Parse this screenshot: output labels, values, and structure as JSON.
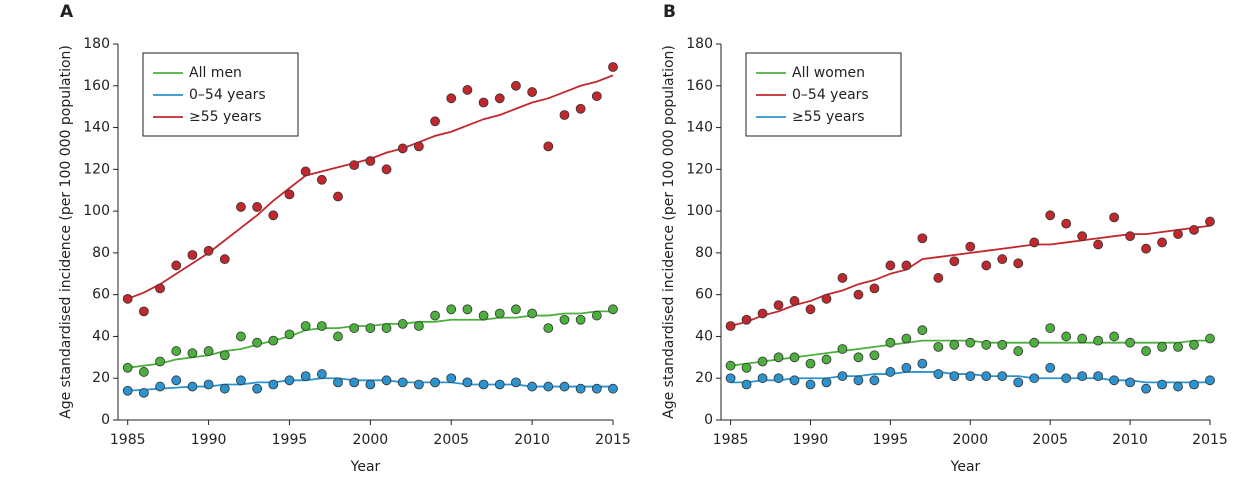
{
  "chart_data": [
    {
      "type": "scatter",
      "panel": "A",
      "x_label": "Year",
      "y_label": "Age standardised incidence (per 100 000 population)",
      "x": [
        1985,
        1986,
        1987,
        1988,
        1989,
        1990,
        1991,
        1992,
        1993,
        1994,
        1995,
        1996,
        1997,
        1998,
        1999,
        2000,
        2001,
        2002,
        2003,
        2004,
        2005,
        2006,
        2007,
        2008,
        2009,
        2010,
        2011,
        2012,
        2013,
        2014,
        2015
      ],
      "xlim": [
        1984.4,
        2015
      ],
      "xticks": [
        1985,
        1990,
        1995,
        2000,
        2005,
        2010,
        2015
      ],
      "ylim": [
        0,
        180
      ],
      "yticks": [
        0,
        20,
        40,
        60,
        80,
        100,
        120,
        140,
        160,
        180
      ],
      "series": [
        {
          "name": "All men",
          "color": "#4caf3e",
          "values": [
            25,
            23,
            28,
            33,
            32,
            33,
            31,
            40,
            37,
            38,
            41,
            45,
            45,
            40,
            44,
            44,
            44,
            46,
            45,
            50,
            53,
            53,
            50,
            51,
            53,
            51,
            44,
            48,
            48,
            50,
            53
          ],
          "fit": [
            25,
            26,
            27,
            29,
            30,
            31,
            33,
            34,
            36,
            38,
            40,
            43,
            44,
            44,
            45,
            45,
            46,
            46,
            47,
            47,
            48,
            48,
            48,
            49,
            49,
            50,
            50,
            51,
            51,
            52,
            52
          ]
        },
        {
          "name": "0–54 years",
          "color": "#2b93cf",
          "values": [
            14,
            13,
            16,
            19,
            16,
            17,
            15,
            19,
            15,
            17,
            19,
            21,
            22,
            18,
            18,
            17,
            19,
            18,
            17,
            18,
            20,
            18,
            17,
            17,
            18,
            16,
            16,
            16,
            15,
            15,
            15
          ],
          "fit": [
            14,
            14.5,
            15,
            15.5,
            16,
            16,
            17,
            17,
            18,
            18,
            19,
            19,
            20,
            20,
            19,
            19,
            19,
            18,
            18,
            18,
            18,
            17,
            17,
            17,
            17,
            16,
            16,
            16,
            16,
            16,
            16
          ]
        },
        {
          "name": "≥55 years",
          "color": "#c1272d",
          "values": [
            58,
            52,
            63,
            74,
            79,
            81,
            77,
            102,
            102,
            98,
            108,
            119,
            115,
            107,
            122,
            124,
            120,
            130,
            131,
            143,
            154,
            158,
            152,
            154,
            160,
            157,
            131,
            146,
            149,
            155,
            169
          ],
          "fit": [
            58,
            61,
            65,
            70,
            75,
            80,
            86,
            92,
            98,
            105,
            111,
            117,
            119,
            121,
            123,
            125,
            128,
            130,
            133,
            136,
            138,
            141,
            144,
            146,
            149,
            152,
            154,
            157,
            160,
            162,
            165
          ]
        }
      ]
    },
    {
      "type": "scatter",
      "panel": "B",
      "x_label": "Year",
      "y_label": "Age standardised incidence (per 100 000 population)",
      "x": [
        1985,
        1986,
        1987,
        1988,
        1989,
        1990,
        1991,
        1992,
        1993,
        1994,
        1995,
        1996,
        1997,
        1998,
        1999,
        2000,
        2001,
        2002,
        2003,
        2004,
        2005,
        2006,
        2007,
        2008,
        2009,
        2010,
        2011,
        2012,
        2013,
        2014,
        2015
      ],
      "xlim": [
        1984.4,
        2015
      ],
      "xticks": [
        1985,
        1990,
        1995,
        2000,
        2005,
        2010,
        2015
      ],
      "ylim": [
        0,
        180
      ],
      "yticks": [
        0,
        20,
        40,
        60,
        80,
        100,
        120,
        140,
        160,
        180
      ],
      "series": [
        {
          "name": "All women",
          "color": "#4caf3e",
          "values": [
            26,
            25,
            28,
            30,
            30,
            27,
            29,
            34,
            30,
            31,
            37,
            39,
            43,
            35,
            36,
            37,
            36,
            36,
            33,
            37,
            44,
            40,
            39,
            38,
            40,
            37,
            33,
            35,
            35,
            36,
            39
          ],
          "fit": [
            26,
            27,
            28,
            29,
            30,
            31,
            32,
            33,
            34,
            35,
            36,
            37,
            38,
            38,
            38,
            38,
            37,
            37,
            37,
            37,
            37,
            37,
            37,
            37,
            37,
            37,
            37,
            37,
            37,
            38,
            38
          ]
        },
        {
          "name": "0–54 years",
          "color": "#c1272d",
          "values": [
            45,
            48,
            51,
            55,
            57,
            53,
            58,
            68,
            60,
            63,
            74,
            74,
            87,
            68,
            76,
            83,
            74,
            77,
            75,
            85,
            98,
            94,
            88,
            84,
            97,
            88,
            82,
            85,
            89,
            91,
            95
          ],
          "fit": [
            45,
            47,
            50,
            52,
            55,
            57,
            60,
            62,
            65,
            67,
            70,
            72,
            77,
            78,
            79,
            80,
            81,
            82,
            83,
            84,
            84,
            85,
            86,
            87,
            88,
            89,
            89,
            90,
            91,
            92,
            93
          ]
        },
        {
          "name": "≥55 years",
          "color": "#2b93cf",
          "values": [
            20,
            17,
            20,
            20,
            19,
            17,
            18,
            21,
            19,
            19,
            23,
            25,
            27,
            22,
            21,
            21,
            21,
            21,
            18,
            20,
            25,
            20,
            21,
            21,
            19,
            18,
            15,
            17,
            16,
            17,
            19
          ],
          "fit": [
            18,
            18,
            19,
            19,
            20,
            20,
            20,
            21,
            21,
            22,
            22,
            23,
            23,
            23,
            22,
            22,
            21,
            21,
            21,
            20,
            20,
            20,
            20,
            20,
            19,
            19,
            18,
            18,
            18,
            18,
            18
          ]
        }
      ]
    }
  ]
}
